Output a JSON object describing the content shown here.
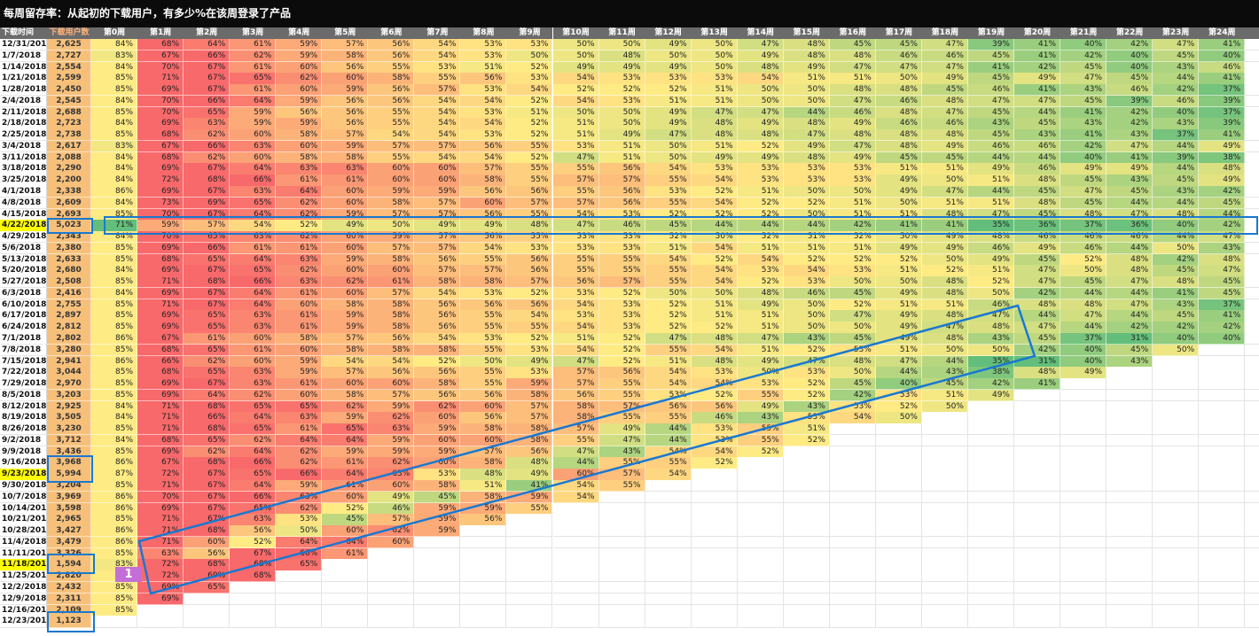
{
  "title": "每周留存率：从起初的下载用户，有多少%在该周登录了产品",
  "badge": "1",
  "colors": {
    "low": "#f8696b",
    "mid": "#ffeb84",
    "high": "#63be7b",
    "users": "#f6c07b",
    "highlight": "#ffff00",
    "box": "#1a78d0",
    "badge": "#c46ed8"
  },
  "chart_data": {
    "type": "heatmap",
    "title": "每周留存率：从起初的下载用户，有多少%在该周登录了产品",
    "column_headers": [
      "下载时间",
      "下载用户数",
      "第0周",
      "第1周",
      "第2周",
      "第3周",
      "第4周",
      "第5周",
      "第6周",
      "第7周",
      "第8周",
      "第9周",
      "第10周",
      "第11周",
      "第12周",
      "第13周",
      "第14周",
      "第15周",
      "第16周",
      "第17周",
      "第18周",
      "第19周",
      "第20周",
      "第21周",
      "第22周",
      "第23周",
      "第24周",
      "第2"
    ],
    "highlighted_rows": [
      "4/22/2018",
      "9/23/2018",
      "11/18/2018"
    ],
    "rows": [
      {
        "date": "12/31/2017",
        "users": "2,625",
        "values": [
          84,
          68,
          64,
          61,
          59,
          57,
          56,
          54,
          53,
          53,
          50,
          50,
          49,
          50,
          47,
          48,
          45,
          45,
          47,
          39,
          41,
          40,
          42,
          47,
          41
        ]
      },
      {
        "date": "1/7/2018",
        "users": "2,727",
        "values": [
          83,
          67,
          66,
          62,
          59,
          58,
          56,
          54,
          53,
          50,
          50,
          48,
          50,
          50,
          49,
          48,
          48,
          46,
          46,
          45,
          41,
          42,
          40,
          45,
          40
        ]
      },
      {
        "date": "1/14/2018",
        "users": "2,554",
        "values": [
          84,
          70,
          67,
          61,
          60,
          56,
          55,
          53,
          51,
          52,
          49,
          49,
          49,
          50,
          48,
          49,
          47,
          47,
          47,
          41,
          42,
          45,
          40,
          43,
          46
        ]
      },
      {
        "date": "1/21/2018",
        "users": "2,599",
        "values": [
          85,
          71,
          67,
          65,
          62,
          60,
          58,
          55,
          56,
          53,
          54,
          53,
          53,
          53,
          54,
          51,
          51,
          50,
          49,
          45,
          49,
          47,
          45,
          44,
          41
        ]
      },
      {
        "date": "1/28/2018",
        "users": "2,450",
        "values": [
          85,
          69,
          67,
          61,
          60,
          59,
          56,
          57,
          53,
          54,
          52,
          52,
          52,
          51,
          50,
          50,
          48,
          48,
          45,
          46,
          41,
          43,
          46,
          42,
          37
        ]
      },
      {
        "date": "2/4/2018",
        "users": "2,545",
        "values": [
          84,
          70,
          66,
          64,
          59,
          56,
          56,
          54,
          54,
          52,
          54,
          53,
          51,
          51,
          50,
          50,
          47,
          46,
          48,
          47,
          47,
          45,
          39,
          46,
          39
        ]
      },
      {
        "date": "2/11/2018",
        "users": "2,688",
        "values": [
          85,
          70,
          65,
          59,
          56,
          56,
          55,
          54,
          53,
          51,
          50,
          50,
          49,
          47,
          47,
          44,
          46,
          48,
          47,
          45,
          44,
          41,
          42,
          40,
          37
        ]
      },
      {
        "date": "2/18/2018",
        "users": "2,723",
        "values": [
          84,
          69,
          63,
          59,
          59,
          56,
          55,
          54,
          54,
          52,
          51,
          50,
          49,
          48,
          49,
          48,
          49,
          46,
          46,
          43,
          45,
          43,
          42,
          43,
          39
        ]
      },
      {
        "date": "2/25/2018",
        "users": "2,738",
        "values": [
          85,
          68,
          62,
          60,
          58,
          57,
          54,
          54,
          53,
          52,
          51,
          49,
          47,
          48,
          48,
          47,
          48,
          48,
          48,
          45,
          43,
          41,
          43,
          37,
          41
        ]
      },
      {
        "date": "3/4/2018",
        "users": "2,617",
        "values": [
          83,
          67,
          66,
          63,
          60,
          59,
          57,
          57,
          56,
          55,
          53,
          51,
          50,
          51,
          52,
          49,
          47,
          48,
          49,
          46,
          46,
          42,
          47,
          44,
          49
        ]
      },
      {
        "date": "3/11/2018",
        "users": "2,088",
        "values": [
          84,
          68,
          62,
          60,
          58,
          58,
          55,
          54,
          54,
          52,
          47,
          51,
          50,
          49,
          49,
          48,
          49,
          45,
          45,
          44,
          44,
          40,
          41,
          39,
          38
        ]
      },
      {
        "date": "3/18/2018",
        "users": "2,290",
        "values": [
          84,
          69,
          67,
          64,
          63,
          63,
          60,
          60,
          57,
          55,
          55,
          56,
          54,
          53,
          53,
          53,
          53,
          51,
          51,
          49,
          46,
          49,
          49,
          44,
          48
        ]
      },
      {
        "date": "3/25/2018",
        "users": "2,200",
        "values": [
          84,
          72,
          68,
          66,
          61,
          61,
          60,
          60,
          58,
          55,
          57,
          57,
          55,
          54,
          53,
          53,
          53,
          49,
          50,
          51,
          48,
          45,
          43,
          45,
          49
        ]
      },
      {
        "date": "4/1/2018",
        "users": "2,338",
        "values": [
          86,
          69,
          67,
          63,
          64,
          60,
          59,
          59,
          56,
          56,
          55,
          56,
          53,
          52,
          51,
          50,
          50,
          49,
          47,
          44,
          45,
          47,
          45,
          43,
          42
        ]
      },
      {
        "date": "4/8/2018",
        "users": "2,609",
        "values": [
          84,
          73,
          69,
          65,
          62,
          60,
          58,
          57,
          60,
          57,
          57,
          56,
          55,
          54,
          52,
          52,
          51,
          50,
          51,
          51,
          48,
          45,
          44,
          44,
          45
        ]
      },
      {
        "date": "4/15/2018",
        "users": "2,693",
        "values": [
          85,
          70,
          67,
          64,
          62,
          59,
          57,
          57,
          56,
          55,
          54,
          53,
          52,
          52,
          52,
          50,
          51,
          51,
          48,
          47,
          45,
          48,
          47,
          48,
          44
        ]
      },
      {
        "date": "4/22/2018",
        "users": "5,023",
        "values": [
          71,
          59,
          57,
          54,
          52,
          49,
          50,
          49,
          49,
          48,
          47,
          46,
          45,
          44,
          44,
          44,
          42,
          41,
          41,
          35,
          36,
          37,
          36,
          40,
          42
        ]
      },
      {
        "date": "4/29/2018",
        "users": "2,343",
        "values": [
          84,
          70,
          65,
          63,
          62,
          60,
          59,
          57,
          56,
          55,
          53,
          53,
          52,
          50,
          52,
          51,
          52,
          50,
          49,
          48,
          46,
          46,
          46,
          44,
          47
        ]
      },
      {
        "date": "5/6/2018",
        "users": "2,380",
        "values": [
          85,
          69,
          66,
          61,
          61,
          60,
          57,
          57,
          54,
          53,
          53,
          53,
          51,
          54,
          51,
          51,
          51,
          49,
          49,
          46,
          49,
          46,
          44,
          50,
          43
        ]
      },
      {
        "date": "5/13/2018",
        "users": "2,633",
        "values": [
          85,
          68,
          65,
          64,
          63,
          59,
          58,
          56,
          55,
          56,
          55,
          55,
          54,
          52,
          54,
          52,
          52,
          52,
          50,
          49,
          45,
          52,
          48,
          42,
          48
        ]
      },
      {
        "date": "5/20/2018",
        "users": "2,680",
        "values": [
          84,
          69,
          67,
          65,
          62,
          60,
          60,
          57,
          57,
          56,
          55,
          55,
          55,
          54,
          53,
          54,
          53,
          51,
          52,
          51,
          47,
          50,
          48,
          45,
          47
        ]
      },
      {
        "date": "5/27/2018",
        "users": "2,508",
        "values": [
          85,
          71,
          68,
          66,
          63,
          62,
          61,
          58,
          58,
          57,
          56,
          57,
          55,
          54,
          52,
          53,
          50,
          50,
          48,
          52,
          47,
          45,
          47,
          48,
          45
        ]
      },
      {
        "date": "6/3/2018",
        "users": "2,416",
        "values": [
          84,
          69,
          67,
          64,
          61,
          60,
          57,
          54,
          53,
          52,
          53,
          52,
          50,
          50,
          48,
          46,
          45,
          49,
          48,
          50,
          42,
          44,
          44,
          41,
          45
        ]
      },
      {
        "date": "6/10/2018",
        "users": "2,755",
        "values": [
          85,
          71,
          67,
          64,
          60,
          58,
          58,
          56,
          56,
          56,
          54,
          53,
          52,
          51,
          49,
          50,
          52,
          51,
          51,
          46,
          48,
          48,
          47,
          43,
          37
        ]
      },
      {
        "date": "6/17/2018",
        "users": "2,897",
        "values": [
          85,
          69,
          65,
          63,
          61,
          59,
          58,
          56,
          55,
          54,
          53,
          53,
          52,
          51,
          51,
          50,
          47,
          49,
          48,
          47,
          44,
          47,
          44,
          45,
          41
        ]
      },
      {
        "date": "6/24/2018",
        "users": "2,812",
        "values": [
          85,
          69,
          65,
          63,
          61,
          59,
          58,
          56,
          55,
          55,
          54,
          53,
          52,
          52,
          51,
          50,
          50,
          49,
          47,
          48,
          47,
          44,
          42,
          42,
          42
        ]
      },
      {
        "date": "7/1/2018",
        "users": "2,802",
        "values": [
          86,
          67,
          61,
          60,
          58,
          57,
          56,
          54,
          53,
          52,
          51,
          52,
          47,
          48,
          47,
          43,
          45,
          49,
          48,
          43,
          45,
          37,
          31,
          40,
          40
        ]
      },
      {
        "date": "7/8/2018",
        "users": "3,280",
        "values": [
          85,
          68,
          65,
          61,
          60,
          58,
          58,
          58,
          55,
          53,
          54,
          52,
          55,
          54,
          51,
          52,
          53,
          51,
          50,
          50,
          42,
          40,
          45,
          50
        ]
      },
      {
        "date": "7/15/2018",
        "users": "2,941",
        "values": [
          86,
          66,
          62,
          60,
          59,
          54,
          54,
          52,
          50,
          49,
          47,
          52,
          51,
          48,
          49,
          47,
          48,
          47,
          44,
          35,
          31,
          40,
          43
        ]
      },
      {
        "date": "7/22/2018",
        "users": "3,044",
        "values": [
          85,
          68,
          65,
          63,
          59,
          57,
          56,
          56,
          55,
          53,
          57,
          56,
          54,
          53,
          50,
          53,
          50,
          44,
          43,
          38,
          48,
          49
        ]
      },
      {
        "date": "7/29/2018",
        "users": "2,970",
        "values": [
          85,
          69,
          67,
          63,
          61,
          60,
          60,
          58,
          55,
          59,
          57,
          55,
          54,
          54,
          53,
          52,
          45,
          40,
          45,
          42,
          41
        ]
      },
      {
        "date": "8/5/2018",
        "users": "3,203",
        "values": [
          85,
          69,
          64,
          62,
          60,
          58,
          57,
          56,
          56,
          58,
          56,
          55,
          53,
          52,
          55,
          52,
          42,
          53,
          51,
          49
        ]
      },
      {
        "date": "8/12/2018",
        "users": "2,925",
        "values": [
          84,
          71,
          68,
          65,
          65,
          62,
          59,
          62,
          60,
          57,
          58,
          57,
          56,
          56,
          49,
          43,
          53,
          52,
          50
        ]
      },
      {
        "date": "8/19/2018",
        "users": "3,505",
        "values": [
          84,
          71,
          66,
          64,
          63,
          59,
          62,
          60,
          56,
          57,
          58,
          55,
          55,
          46,
          43,
          53,
          54,
          50
        ]
      },
      {
        "date": "8/26/2018",
        "users": "3,230",
        "values": [
          85,
          71,
          68,
          65,
          61,
          65,
          63,
          59,
          58,
          58,
          57,
          49,
          44,
          53,
          55,
          51
        ]
      },
      {
        "date": "9/2/2018",
        "users": "3,712",
        "values": [
          84,
          68,
          65,
          62,
          64,
          64,
          59,
          60,
          60,
          58,
          55,
          47,
          44,
          53,
          55,
          52
        ]
      },
      {
        "date": "9/9/2018",
        "users": "3,436",
        "values": [
          85,
          69,
          62,
          64,
          62,
          59,
          59,
          59,
          57,
          56,
          47,
          43,
          54,
          54,
          52
        ]
      },
      {
        "date": "9/16/2018",
        "users": "3,968",
        "values": [
          86,
          67,
          68,
          66,
          62,
          61,
          62,
          60,
          58,
          48,
          44,
          55,
          55,
          52
        ]
      },
      {
        "date": "9/23/2018",
        "users": "5,994",
        "values": [
          87,
          72,
          67,
          65,
          66,
          64,
          63,
          53,
          48,
          49,
          60,
          57,
          54
        ]
      },
      {
        "date": "9/30/2018",
        "users": "3,204",
        "values": [
          85,
          71,
          67,
          64,
          59,
          61,
          60,
          58,
          51,
          41,
          54,
          55
        ]
      },
      {
        "date": "10/7/2018",
        "users": "3,969",
        "values": [
          86,
          70,
          67,
          66,
          63,
          60,
          49,
          45,
          58,
          59,
          54
        ]
      },
      {
        "date": "10/14/2018",
        "users": "3,598",
        "values": [
          86,
          69,
          67,
          65,
          62,
          52,
          46,
          59,
          59,
          55
        ]
      },
      {
        "date": "10/21/2018",
        "users": "2,965",
        "values": [
          85,
          71,
          67,
          63,
          53,
          45,
          57,
          59,
          56
        ]
      },
      {
        "date": "10/28/2018",
        "users": "3,427",
        "values": [
          86,
          71,
          68,
          56,
          50,
          60,
          62,
          59
        ]
      },
      {
        "date": "11/4/2018",
        "users": "3,479",
        "values": [
          86,
          71,
          60,
          52,
          64,
          64,
          60
        ]
      },
      {
        "date": "11/11/2018",
        "users": "3,326",
        "values": [
          85,
          63,
          56,
          67,
          66,
          61
        ]
      },
      {
        "date": "11/18/2018",
        "users": "1,594",
        "values": [
          83,
          72,
          68,
          68,
          65
        ]
      },
      {
        "date": "11/25/2018",
        "users": "2,820",
        "values": [
          85,
          72,
          69,
          68
        ]
      },
      {
        "date": "12/2/2018",
        "users": "2,432",
        "values": [
          85,
          69,
          65
        ]
      },
      {
        "date": "12/9/2018",
        "users": "2,311",
        "values": [
          85,
          69
        ]
      },
      {
        "date": "12/16/2018",
        "users": "2,109",
        "values": [
          85
        ]
      },
      {
        "date": "12/23/2018",
        "users": "1,123",
        "values": []
      }
    ]
  }
}
